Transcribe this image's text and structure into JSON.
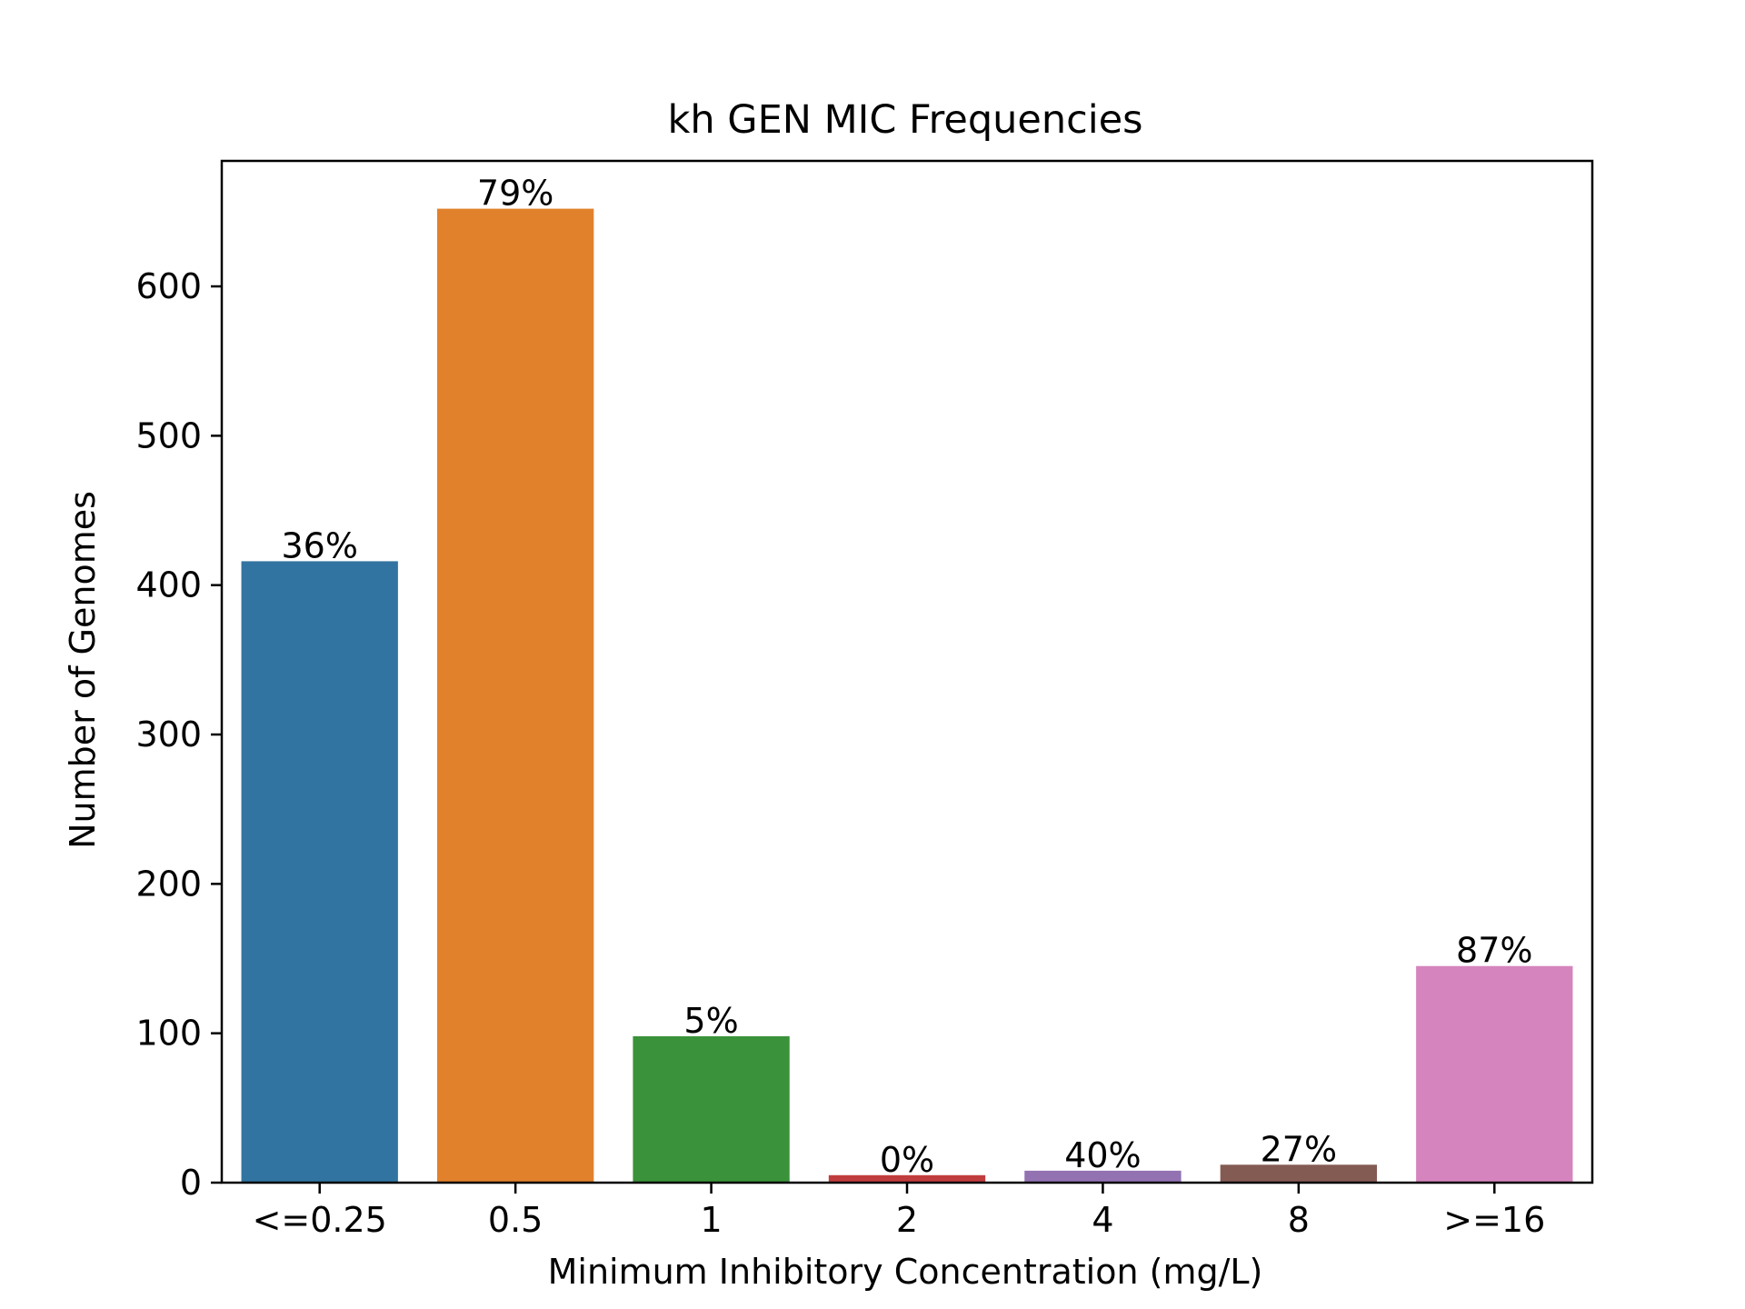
{
  "chart_data": {
    "type": "bar",
    "title": "kh GEN MIC Frequencies",
    "xlabel": "Minimum Inhibitory Concentration (mg/L)",
    "ylabel": "Number of Genomes",
    "categories": [
      "<=0.25",
      "0.5",
      "1",
      "2",
      "4",
      "8",
      ">=16"
    ],
    "values": [
      416,
      652,
      98,
      5,
      8,
      12,
      145
    ],
    "data_labels": [
      "36%",
      "79%",
      "5%",
      "0%",
      "40%",
      "27%",
      "87%"
    ],
    "colors": [
      "#3274a1",
      "#e1812c",
      "#3a923a",
      "#c03d3e",
      "#9372b2",
      "#845b53",
      "#d684bd"
    ],
    "ylim": [
      0,
      684
    ],
    "yticks": [
      0,
      100,
      200,
      300,
      400,
      500,
      600
    ],
    "grid": false,
    "legend": "none"
  }
}
